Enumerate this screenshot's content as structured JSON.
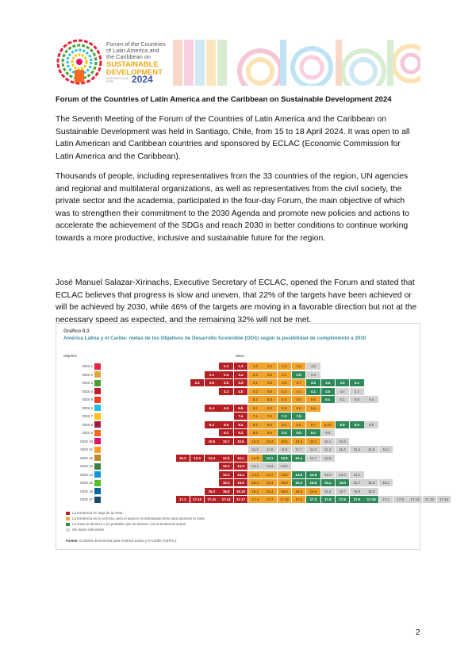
{
  "header": {
    "logo_line1": "Forum of the Countries",
    "logo_line2": "of Latin America and",
    "logo_line3": "the Caribbean on",
    "logo_big1": "SUSTAINABLE",
    "logo_big2": "DEVELOPMENT",
    "logo_small": "SANTIAGO 15-18 APRIL",
    "logo_year": "2024"
  },
  "doc_title": "Forum of the Countries of Latin America and the Caribbean on Sustainable Development 2024",
  "paragraphs": [
    "The Seventh Meeting of the Forum of the Countries of Latin America and the Caribbean on Sustainable Development was held in Santiago, Chile, from 15 to 18 April 2024. It was open to all Latin American and Caribbean countries and sponsored by ECLAC (Economic Commission for Latin America and the Caribbean).",
    "Thousands of people, including representatives from the 33 countries of the region, UN agencies and regional and multilateral organizations, as well as representatives from the civil society, the private sector and the academia, participated in the four-day Forum, the main objective of which was to strengthen their commitment to the 2030 Agenda and promote new policies and actions to accelerate the achievement of the SDGs and reach 2030 in better conditions to continue working towards a more productive, inclusive and sustainable future for the region.",
    "José Manuel Salazar-Xirinachs, Executive Secretary of ECLAC, opened the Forum and stated that ECLAC believes that progress is slow and uneven, that 22% of the targets have been achieved or will be achieved by 2030, while 46% of the targets are moving in a favorable direction but not at the necessary speed as expected, and the remaining 32% will not be met."
  ],
  "figure": {
    "label": "Gráfico II.3",
    "title": "América Latina y el Caribe: metas de los Objetivos de Desarrollo Sostenible (ODS) según la posibilidad de cumplimiento a 2030",
    "col_objetivo": "Objetivo",
    "col_meta": "Meta",
    "legend": [
      {
        "color": "#b52025",
        "text": "La tendencia se aleja de la meta"
      },
      {
        "color": "#f0a32c",
        "text": "La tendencia es la correcta, pero el avance es demasiado lento para alcanzar la meta"
      },
      {
        "color": "#2e8a58",
        "text": "La meta se alcanzó o es probable que se alcance con la tendencia actual"
      },
      {
        "color": "#d3d3d3",
        "text": "Sin datos suficientes"
      }
    ],
    "source_label": "Fuente:",
    "source_text": "Comisión Económica para América Latina y el Caribe (CEPAL)."
  },
  "colors": {
    "R": "#b52025",
    "Y": "#f0a32c",
    "G": "#2e8a58",
    "N": "#d3d3d3"
  },
  "chart_data": {
    "type": "table",
    "rows": [
      {
        "goal": "ODS 1",
        "icon": "#e5243b",
        "cells": [
          [
            "1.1",
            "R"
          ],
          [
            "1.3",
            "R"
          ],
          [
            "1.2",
            "Y"
          ],
          [
            "1.4",
            "Y"
          ],
          [
            "1.5",
            "Y"
          ],
          [
            "1.a",
            "Y"
          ],
          [
            "1.b",
            "N"
          ]
        ]
      },
      {
        "goal": "ODS 2",
        "icon": "#dda63a",
        "cells": [
          [
            "2.1",
            "R"
          ],
          [
            "2.4",
            "R"
          ],
          [
            "2.a",
            "R"
          ],
          [
            "2.2",
            "Y"
          ],
          [
            "2.5",
            "Y"
          ],
          [
            "2.c",
            "Y"
          ],
          [
            "2.b",
            "G"
          ],
          [
            "2.3",
            "N"
          ]
        ]
      },
      {
        "goal": "ODS 3",
        "icon": "#4c9f38",
        "cells": [
          [
            "3.4",
            "R"
          ],
          [
            "3.8",
            "R"
          ],
          [
            "3.b",
            "R"
          ],
          [
            "3.d",
            "R"
          ],
          [
            "3.1",
            "Y"
          ],
          [
            "3.3",
            "Y"
          ],
          [
            "3.6",
            "Y"
          ],
          [
            "3.7",
            "Y"
          ],
          [
            "3.2",
            "G"
          ],
          [
            "3.5",
            "G"
          ],
          [
            "3.9",
            "G"
          ],
          [
            "3.c",
            "G"
          ]
        ]
      },
      {
        "goal": "ODS 4",
        "icon": "#c5192d",
        "cells": [
          [
            "4.3",
            "R"
          ],
          [
            "4.b",
            "R"
          ],
          [
            "4.2",
            "Y"
          ],
          [
            "4.6",
            "Y"
          ],
          [
            "4.a",
            "Y"
          ],
          [
            "4.c",
            "Y"
          ],
          [
            "4.1",
            "G"
          ],
          [
            "4.5",
            "G"
          ],
          [
            "4.4",
            "N"
          ],
          [
            "4.7",
            "N"
          ]
        ]
      },
      {
        "goal": "ODS 5",
        "icon": "#ff3a21",
        "cells": [
          [
            "5.2",
            "Y"
          ],
          [
            "5.3",
            "Y"
          ],
          [
            "5.4",
            "Y"
          ],
          [
            "5.5",
            "Y"
          ],
          [
            "5.b",
            "Y"
          ],
          [
            "5.c",
            "G"
          ],
          [
            "5.1",
            "N"
          ],
          [
            "5.6",
            "N"
          ],
          [
            "5.a",
            "N"
          ]
        ]
      },
      {
        "goal": "ODS 6",
        "icon": "#26bde2",
        "cells": [
          [
            "6.4",
            "R"
          ],
          [
            "6.6",
            "R"
          ],
          [
            "6.b",
            "R"
          ],
          [
            "6.1",
            "Y"
          ],
          [
            "6.2",
            "Y"
          ],
          [
            "6.3",
            "Y"
          ],
          [
            "6.5",
            "Y"
          ],
          [
            "6.a",
            "Y"
          ]
        ]
      },
      {
        "goal": "ODS 7",
        "icon": "#fcc30b",
        "cells": [
          [
            "7.a",
            "R"
          ],
          [
            "7.1",
            "Y"
          ],
          [
            "7.3",
            "Y"
          ],
          [
            "7.2",
            "G"
          ],
          [
            "7.b",
            "G"
          ]
        ]
      },
      {
        "goal": "ODS 8",
        "icon": "#a21942",
        "cells": [
          [
            "8.4",
            "R"
          ],
          [
            "8.5",
            "R"
          ],
          [
            "8.a",
            "R"
          ],
          [
            "8.1",
            "Y"
          ],
          [
            "8.2",
            "Y"
          ],
          [
            "8.3",
            "Y"
          ],
          [
            "8.5",
            "Y"
          ],
          [
            "8.7",
            "Y"
          ],
          [
            "8.10",
            "Y"
          ],
          [
            "8.8",
            "G"
          ],
          [
            "8.9",
            "G"
          ],
          [
            "8.b",
            "N"
          ]
        ]
      },
      {
        "goal": "ODS 9",
        "icon": "#fd6925",
        "cells": [
          [
            "9.1",
            "R"
          ],
          [
            "9.2",
            "R"
          ],
          [
            "9.5",
            "Y"
          ],
          [
            "9.a",
            "Y"
          ],
          [
            "9.4",
            "G"
          ],
          [
            "9.b",
            "G"
          ],
          [
            "9.c",
            "G"
          ],
          [
            "9.3",
            "N"
          ]
        ]
      },
      {
        "goal": "ODS 10",
        "icon": "#dd1367",
        "cells": [
          [
            "10.5",
            "R"
          ],
          [
            "10.7",
            "R"
          ],
          [
            "10.b",
            "R"
          ],
          [
            "10.2",
            "Y"
          ],
          [
            "10.4",
            "Y"
          ],
          [
            "10.6",
            "Y"
          ],
          [
            "10.a",
            "Y"
          ],
          [
            "10.c",
            "Y"
          ],
          [
            "10.1",
            "N"
          ],
          [
            "10.3",
            "N"
          ]
        ]
      },
      {
        "goal": "ODS 11",
        "icon": "#fd9d24",
        "cells": [
          [
            "11.1",
            "N"
          ],
          [
            "11.5",
            "N"
          ],
          [
            "11.6",
            "N"
          ],
          [
            "11.7",
            "N"
          ],
          [
            "11.3",
            "N"
          ],
          [
            "11.4",
            "N"
          ],
          [
            "11.2",
            "N"
          ],
          [
            "11.a",
            "N"
          ],
          [
            "11.b",
            "N"
          ],
          [
            "11.c",
            "N"
          ]
        ]
      },
      {
        "goal": "ODS 12",
        "icon": "#bf8b2e",
        "cells": [
          [
            "12.2",
            "R"
          ],
          [
            "12.3",
            "R"
          ],
          [
            "12.4",
            "R"
          ],
          [
            "12.b",
            "R"
          ],
          [
            "12.c",
            "R"
          ],
          [
            "12.5",
            "Y"
          ],
          [
            "12.1",
            "G"
          ],
          [
            "12.6",
            "G"
          ],
          [
            "12.a",
            "G"
          ],
          [
            "12.7",
            "N"
          ],
          [
            "12.8",
            "N"
          ]
        ]
      },
      {
        "goal": "ODS 13",
        "icon": "#3f7e44",
        "cells": [
          [
            "13.2",
            "R"
          ],
          [
            "13.3",
            "R"
          ],
          [
            "13.1",
            "N"
          ],
          [
            "13.a",
            "N"
          ],
          [
            "13.b",
            "N"
          ]
        ]
      },
      {
        "goal": "ODS 14",
        "icon": "#0a97d9",
        "cells": [
          [
            "14.1",
            "R"
          ],
          [
            "14.a",
            "R"
          ],
          [
            "14.2",
            "Y"
          ],
          [
            "14.7",
            "Y"
          ],
          [
            "14.b",
            "Y"
          ],
          [
            "14.5",
            "G"
          ],
          [
            "14.6",
            "G"
          ],
          [
            "14.3",
            "N"
          ],
          [
            "14.4",
            "N"
          ],
          [
            "14.c",
            "N"
          ]
        ]
      },
      {
        "goal": "ODS 15",
        "icon": "#56c02b",
        "cells": [
          [
            "15.3",
            "R"
          ],
          [
            "15.5",
            "R"
          ],
          [
            "15.1",
            "Y"
          ],
          [
            "15.4",
            "Y"
          ],
          [
            "15.9",
            "Y"
          ],
          [
            "15.2",
            "G"
          ],
          [
            "15.6",
            "G"
          ],
          [
            "15.a",
            "G"
          ],
          [
            "15.b",
            "G"
          ],
          [
            "15.7",
            "N"
          ],
          [
            "15.8",
            "N"
          ],
          [
            "15.c",
            "N"
          ]
        ]
      },
      {
        "goal": "ODS 16",
        "icon": "#00689d",
        "cells": [
          [
            "16.3",
            "R"
          ],
          [
            "16.6",
            "R"
          ],
          [
            "16.10",
            "R"
          ],
          [
            "16.1",
            "Y"
          ],
          [
            "16.2",
            "Y"
          ],
          [
            "16.5",
            "Y"
          ],
          [
            "16.8",
            "Y"
          ],
          [
            "16.a",
            "Y"
          ],
          [
            "16.4",
            "N"
          ],
          [
            "16.7",
            "N"
          ],
          [
            "16.9",
            "N"
          ],
          [
            "16.b",
            "N"
          ]
        ]
      },
      {
        "goal": "ODS 17",
        "icon": "#19486a",
        "cells": [
          [
            "17.1",
            "R"
          ],
          [
            "17.10",
            "R"
          ],
          [
            "17.11",
            "R"
          ],
          [
            "17.13",
            "R"
          ],
          [
            "17.17",
            "R"
          ],
          [
            "17.4",
            "Y"
          ],
          [
            "17.7",
            "Y"
          ],
          [
            "17.12",
            "Y"
          ],
          [
            "17.8",
            "Y"
          ],
          [
            "17.3",
            "G"
          ],
          [
            "17.6",
            "G"
          ],
          [
            "17.8",
            "G"
          ],
          [
            "17.9",
            "G"
          ],
          [
            "17.19",
            "G"
          ],
          [
            "17.2",
            "N"
          ],
          [
            "17.5",
            "N"
          ],
          [
            "17.14",
            "N"
          ],
          [
            "17.15",
            "N"
          ],
          [
            "17.16",
            "N"
          ]
        ]
      }
    ]
  },
  "page_number": "2"
}
